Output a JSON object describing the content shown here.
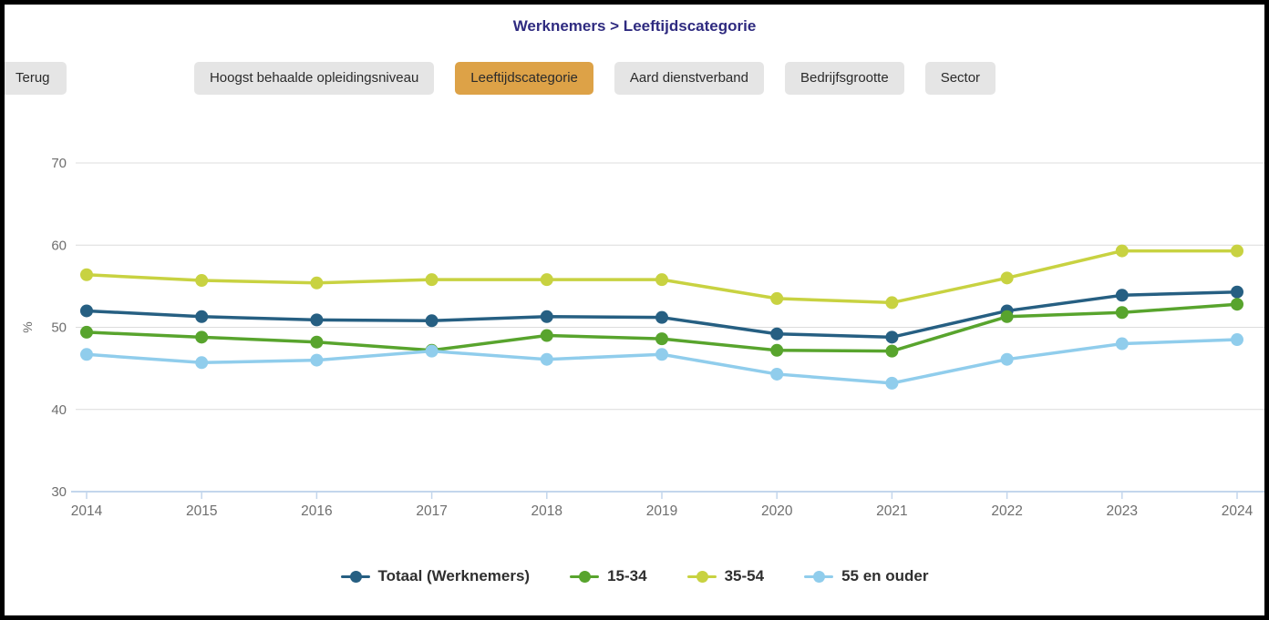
{
  "header": {
    "title": "Werknemers > Leeftijdscategorie",
    "title_color": "#2f2b80"
  },
  "toolbar": {
    "back_label": "Terug",
    "filters": [
      {
        "label": "Hoogst behaalde opleidingsniveau",
        "active": false
      },
      {
        "label": "Leeftijdscategorie",
        "active": true
      },
      {
        "label": "Aard dienstverband",
        "active": false
      },
      {
        "label": "Bedrijfsgrootte",
        "active": false
      },
      {
        "label": "Sector",
        "active": false
      }
    ],
    "active_color": "#dda247",
    "inactive_color": "#e5e5e5"
  },
  "chart_data": {
    "type": "line",
    "title": "",
    "xlabel": "",
    "ylabel": "%",
    "ylim": [
      30,
      70
    ],
    "yticks": [
      30,
      40,
      50,
      60,
      70
    ],
    "grid": true,
    "legend_position": "bottom",
    "x": [
      2014,
      2015,
      2016,
      2017,
      2018,
      2019,
      2020,
      2021,
      2022,
      2023,
      2024
    ],
    "series": [
      {
        "name": "Totaal (Werknemers)",
        "color": "#265f82",
        "values": [
          52.0,
          51.3,
          50.9,
          50.8,
          51.3,
          51.2,
          49.2,
          48.8,
          52.0,
          53.9,
          54.3
        ]
      },
      {
        "name": "15-34",
        "color": "#58a42d",
        "values": [
          49.4,
          48.8,
          48.2,
          47.2,
          49.0,
          48.6,
          47.2,
          47.1,
          51.3,
          51.8,
          52.8
        ]
      },
      {
        "name": "35-54",
        "color": "#c8d241",
        "values": [
          56.4,
          55.7,
          55.4,
          55.8,
          55.8,
          55.8,
          53.5,
          53.0,
          56.0,
          59.3,
          59.3
        ]
      },
      {
        "name": "55 en ouder",
        "color": "#90cdec",
        "values": [
          46.7,
          45.7,
          46.0,
          47.1,
          46.1,
          46.7,
          44.3,
          43.2,
          46.1,
          48.0,
          48.5
        ]
      }
    ],
    "axis_color": "#c3d6ec",
    "grid_color": "#dcdcdc",
    "tick_label_color": "#6e6e6e"
  }
}
